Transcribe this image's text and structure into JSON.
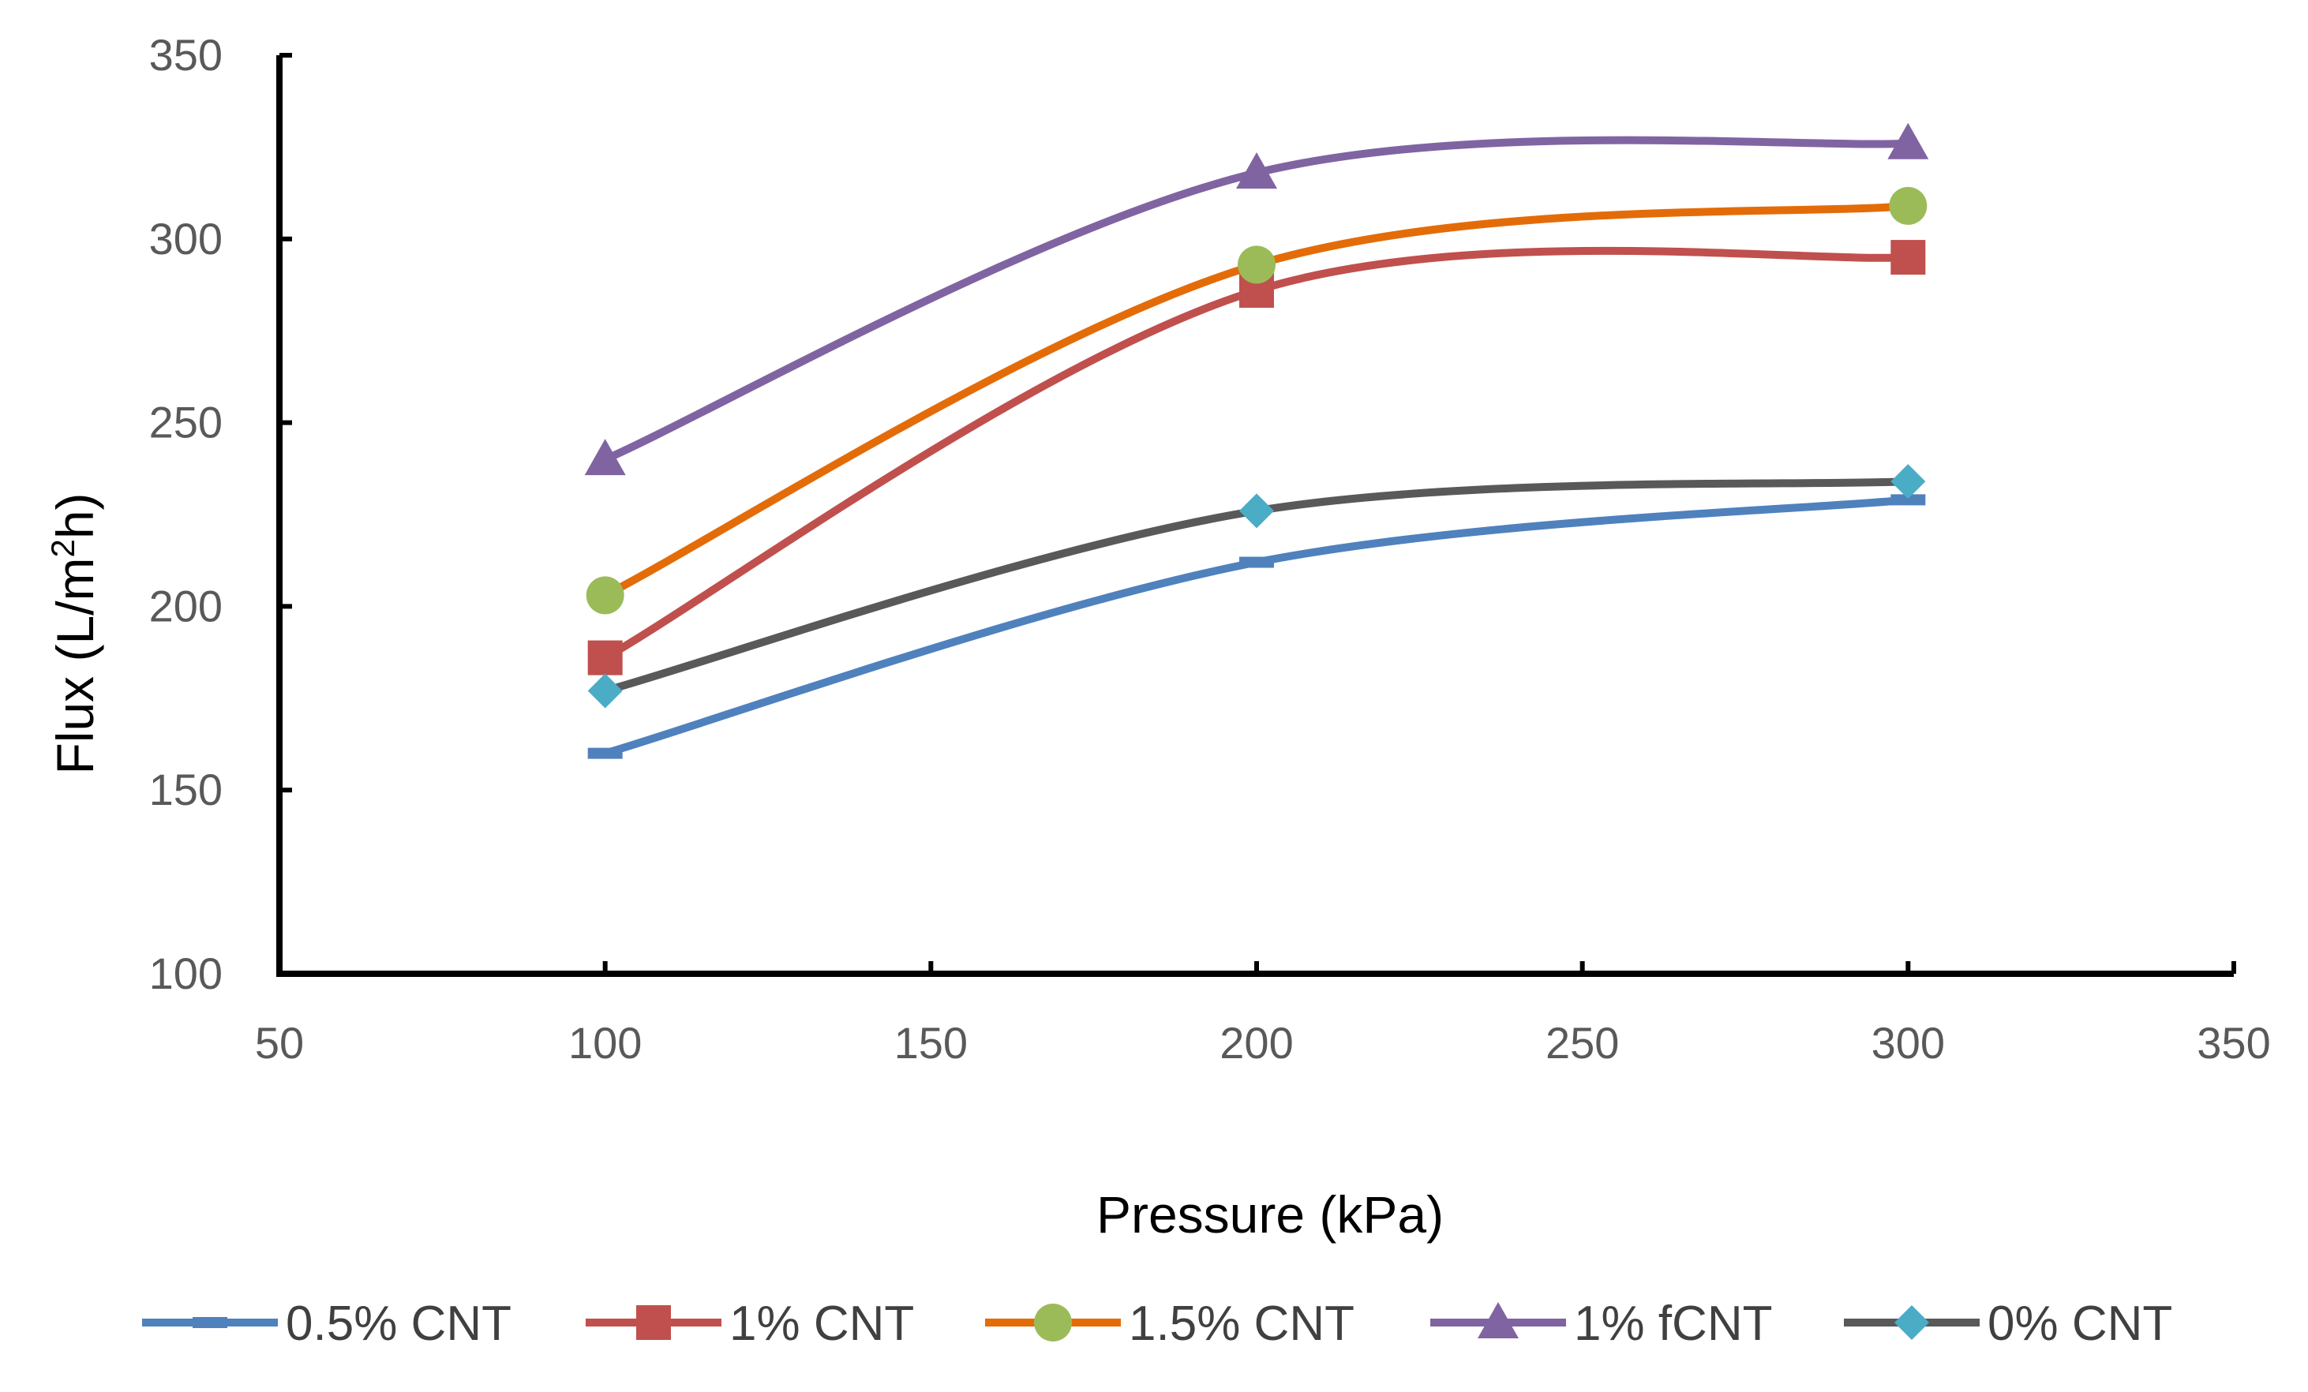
{
  "chart_data": {
    "type": "line",
    "title": "",
    "xlabel": "Pressure (kPa)",
    "ylabel_prefix": "Flux (L/m",
    "ylabel_sup": "2",
    "ylabel_suffix": "h)",
    "xlim": [
      50,
      350
    ],
    "ylim": [
      100,
      350
    ],
    "xticks": [
      50,
      100,
      150,
      200,
      250,
      300,
      350
    ],
    "yticks": [
      100,
      150,
      200,
      250,
      300,
      350
    ],
    "xtick_labels": [
      "50",
      "100",
      "150",
      "200",
      "250",
      "300",
      "350"
    ],
    "ytick_labels": [
      "100",
      "150",
      "200",
      "250",
      "300",
      "350"
    ],
    "x": [
      100,
      200,
      300
    ],
    "legend_position": "bottom",
    "series": [
      {
        "name": "0.5% CNT",
        "values": [
          160,
          212,
          229
        ],
        "color": "#4F81BD",
        "marker": "dash"
      },
      {
        "name": "1% CNT",
        "values": [
          186,
          286,
          295
        ],
        "color": "#C0504D",
        "marker": "square"
      },
      {
        "name": "1.5% CNT",
        "values": [
          203,
          293,
          309
        ],
        "color": "#E36C09",
        "marker_color": "#9BBB59",
        "marker": "circle"
      },
      {
        "name": "1% fCNT",
        "values": [
          240,
          318,
          326
        ],
        "color": "#8064A2",
        "marker": "triangle"
      },
      {
        "name": "0% CNT",
        "values": [
          177,
          226,
          234
        ],
        "color": "#595959",
        "marker_color": "#4BACC6",
        "marker": "diamond"
      }
    ]
  }
}
